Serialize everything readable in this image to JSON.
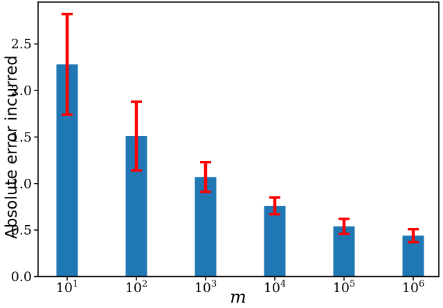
{
  "figure": {
    "background": "#ffffff"
  },
  "chart_data": {
    "type": "bar",
    "title": "",
    "xlabel": "m",
    "ylabel": "Absolute error incurred",
    "categories": [
      "10^1",
      "10^2",
      "10^3",
      "10^4",
      "10^5",
      "10^6"
    ],
    "values": [
      2.28,
      1.51,
      1.07,
      0.76,
      0.54,
      0.44
    ],
    "error_bars": [
      0.54,
      0.37,
      0.16,
      0.09,
      0.08,
      0.07
    ],
    "yticks": [
      0.0,
      0.5,
      1.0,
      1.5,
      2.0,
      2.5
    ],
    "ytick_labels": [
      "0.0",
      "0.5",
      "1.0",
      "1.5",
      "2.0",
      "2.5"
    ],
    "ylim": [
      0,
      2.95
    ],
    "grid": false,
    "legend": null,
    "bar_color": "#1f77b4",
    "error_color": "#ff0000",
    "axis_color": "#000000"
  }
}
